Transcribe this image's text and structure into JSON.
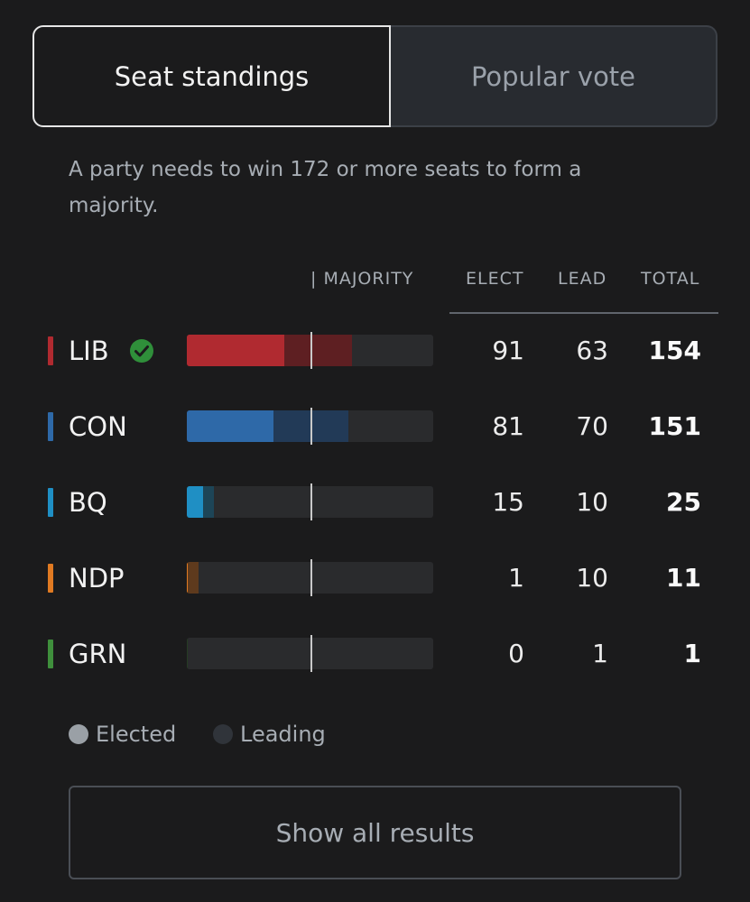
{
  "tabs": {
    "seat_standings": "Seat standings",
    "popular_vote": "Popular vote"
  },
  "intro": "A party needs to win 172 or more seats to form a majority.",
  "table": {
    "majority_header": "| MAJORITY",
    "elect_header": "ELECT",
    "lead_header": "LEAD",
    "total_header": "TOTAL",
    "majority_seats": 172,
    "bar_scale_max": 230,
    "rows": [
      {
        "party": "LIB",
        "elect": "91",
        "lead": "63",
        "total": "154",
        "color": "#b02a30",
        "lead_color": "#5e1f22",
        "winner": true
      },
      {
        "party": "CON",
        "elect": "81",
        "lead": "70",
        "total": "151",
        "color": "#2e69a8",
        "lead_color": "#223a57",
        "winner": false
      },
      {
        "party": "BQ",
        "elect": "15",
        "lead": "10",
        "total": "25",
        "color": "#1f8fc4",
        "lead_color": "#1d4557",
        "winner": false
      },
      {
        "party": "NDP",
        "elect": "1",
        "lead": "10",
        "total": "11",
        "color": "#e07a22",
        "lead_color": "#5e3a1d",
        "winner": false
      },
      {
        "party": "GRN",
        "elect": "0",
        "lead": "1",
        "total": "1",
        "color": "#3f8f3c",
        "lead_color": "#253b23",
        "winner": false
      }
    ]
  },
  "legend": {
    "elected": "Elected",
    "leading": "Leading",
    "elected_color": "#9aa0a6",
    "leading_color": "#30343a"
  },
  "winner_icon": "check-circle-icon",
  "winner_color": "#2f8f3a",
  "show_all_label": "Show all results"
}
